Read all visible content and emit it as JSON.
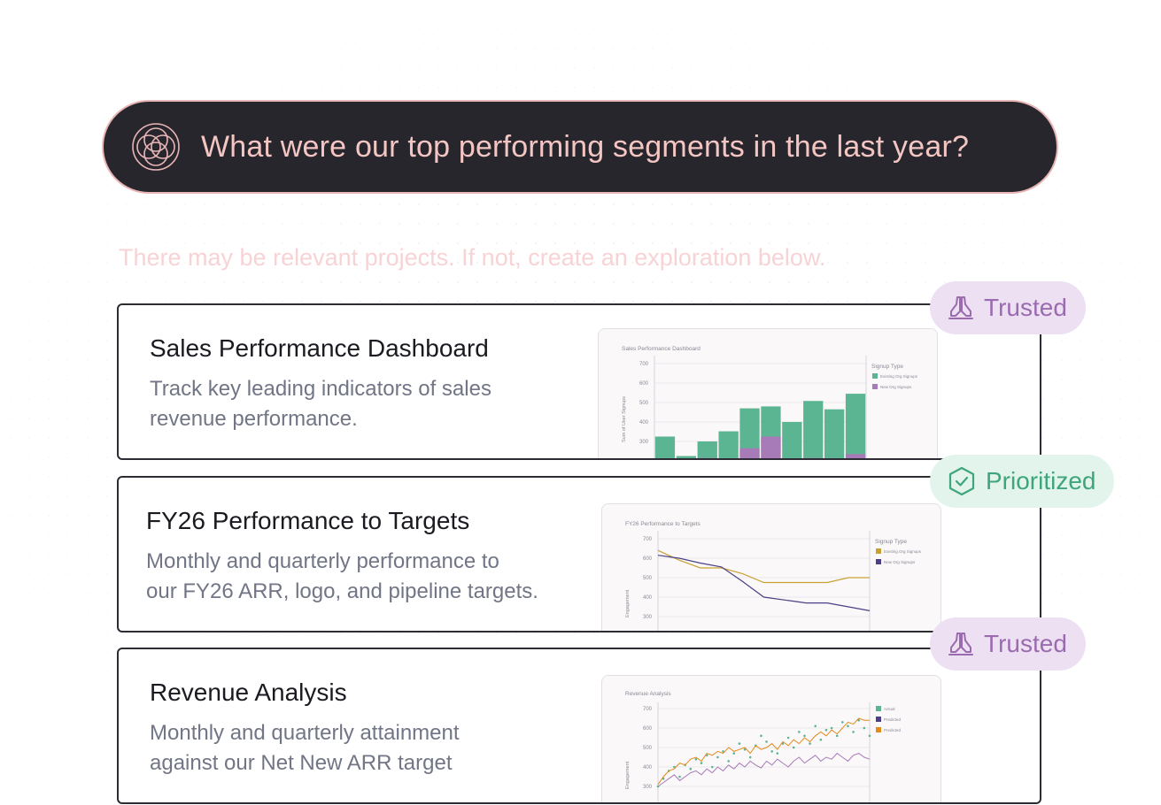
{
  "ask": {
    "question": "What were our top performing segments in the last year?",
    "logo_icon": "orbit-logo-icon"
  },
  "hint": "There may be relevant projects. If not, create an exploration below.",
  "colors": {
    "bar_bg": "#28262d",
    "accent_pink": "#f4c6c3",
    "trusted": "#9b6bb0",
    "prioritized": "#3fa57d",
    "green_series": "#5cb592",
    "purple_series": "#a77ab8",
    "gold_series": "#c9a133",
    "navy_series": "#4b3f86",
    "orange_series": "#e48a1b"
  },
  "cards": [
    {
      "title": "Sales Performance Dashboard",
      "desc_lines": [
        "Track key leading indicators of sales",
        "revenue performance."
      ],
      "badge": {
        "label": "Trusted",
        "icon": "praying-hands-icon"
      },
      "preview": {
        "chart_title": "Sales Performance Dashboard",
        "ylabel": "Sum of User Signups",
        "yticks": [
          "700",
          "600",
          "500",
          "400",
          "300"
        ],
        "legend_title": "Signup Type",
        "legend": [
          "Existing Org Signups",
          "New Org Signups"
        ]
      }
    },
    {
      "title": "FY26 Performance to Targets",
      "desc_lines": [
        "Monthly and quarterly performance to",
        "our FY26 ARR, logo, and pipeline targets."
      ],
      "badge": {
        "label": "Prioritized",
        "icon": "shield-check-icon"
      },
      "preview": {
        "chart_title": "FY26 Performance to Targets",
        "ylabel": "Engagement",
        "yticks": [
          "700",
          "600",
          "500",
          "400",
          "300"
        ],
        "legend_title": "Signup Type",
        "legend": [
          "Existing Org Signups",
          "New Org Signups"
        ]
      }
    },
    {
      "title": "Revenue Analysis",
      "desc_lines": [
        "Monthly and quarterly attainment",
        "against our Net New ARR target"
      ],
      "badge": {
        "label": "Trusted",
        "icon": "praying-hands-icon"
      },
      "preview": {
        "chart_title": "Revenue Analysis",
        "ylabel": "Engagement",
        "yticks": [
          "700",
          "600",
          "500",
          "400",
          "300"
        ],
        "legend": [
          "Actual",
          "Predicted",
          "Predicted"
        ]
      }
    }
  ],
  "chart_data": [
    {
      "type": "bar",
      "title": "Sales Performance Dashboard",
      "ylabel": "Sum of User Signups",
      "ylim": [
        200,
        700
      ],
      "series": [
        {
          "name": "Existing Org Signups",
          "values": [
            325,
            225,
            300,
            352,
            470,
            480,
            400,
            508,
            465,
            545
          ]
        },
        {
          "name": "New Org Signups",
          "values": [
            8,
            0,
            15,
            5,
            65,
            125,
            10,
            15,
            8,
            35
          ]
        }
      ]
    },
    {
      "type": "line",
      "title": "FY26 Performance to Targets",
      "ylabel": "Engagement",
      "ylim": [
        270,
        710
      ],
      "x": [
        0,
        1,
        2,
        3,
        4,
        5,
        6,
        7,
        8,
        9,
        10
      ],
      "series": [
        {
          "name": "Existing Org Signups",
          "values": [
            640,
            590,
            550,
            550,
            520,
            475,
            475,
            475,
            475,
            500,
            500
          ]
        },
        {
          "name": "New Org Signups",
          "values": [
            615,
            600,
            575,
            555,
            480,
            400,
            385,
            370,
            370,
            350,
            330
          ]
        }
      ]
    },
    {
      "type": "line",
      "title": "Revenue Analysis",
      "ylabel": "Engagement",
      "ylim": [
        270,
        710
      ],
      "series": [
        {
          "name": "Actual",
          "values": [
            300,
            340,
            380,
            400,
            350,
            410,
            390,
            440,
            420,
            460,
            400,
            450,
            480,
            430,
            470,
            520,
            490,
            450,
            510,
            560,
            530,
            480,
            470,
            520,
            550,
            500,
            580,
            560,
            520,
            610,
            540,
            590,
            600,
            560,
            630,
            610,
            580,
            640,
            600,
            560
          ]
        },
        {
          "name": "Predicted",
          "values": [
            300,
            320,
            340,
            360,
            330,
            350,
            370,
            380,
            360,
            390,
            370,
            400,
            380,
            410,
            390,
            420,
            400,
            430,
            410,
            395,
            430,
            410,
            440,
            420,
            400,
            430,
            450,
            420,
            440,
            460,
            430,
            450,
            440,
            470,
            450,
            430,
            460,
            470,
            450,
            440
          ]
        },
        {
          "name": "Predicted",
          "values": [
            310,
            350,
            380,
            390,
            420,
            410,
            440,
            450,
            430,
            470,
            460,
            480,
            470,
            500,
            480,
            490,
            500,
            470,
            510,
            490,
            500,
            520,
            490,
            530,
            510,
            540,
            520,
            550,
            530,
            560,
            580,
            560,
            590,
            570,
            600,
            630,
            620,
            650,
            640,
            640
          ]
        }
      ]
    }
  ]
}
